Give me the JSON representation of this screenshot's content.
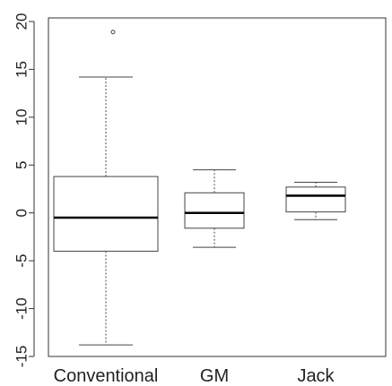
{
  "chart_data": {
    "type": "boxplot",
    "title": "",
    "xlabel": "",
    "ylabel": "",
    "ylim": [
      -16,
      20
    ],
    "y_ticks": [
      -15,
      -10,
      -5,
      0,
      5,
      10,
      15,
      20
    ],
    "y_tick_labels": [
      "-15",
      "-10",
      "-5",
      "0",
      "5",
      "10",
      "15",
      "20"
    ],
    "categories": [
      "Conventional",
      "GM",
      "Jack"
    ],
    "boxes": [
      {
        "name": "Conventional",
        "whisker_low": -13.8,
        "q1": -4.0,
        "median": -0.5,
        "q3": 3.8,
        "whisker_high": 14.2,
        "outliers": [
          18.9
        ]
      },
      {
        "name": "GM",
        "whisker_low": -3.6,
        "q1": -1.6,
        "median": 0.0,
        "q3": 2.1,
        "whisker_high": 4.5,
        "outliers": []
      },
      {
        "name": "Jack",
        "whisker_low": -0.7,
        "q1": 0.1,
        "median": 1.8,
        "q3": 2.7,
        "whisker_high": 3.2,
        "outliers": []
      }
    ],
    "grid": false,
    "legend": "none"
  }
}
